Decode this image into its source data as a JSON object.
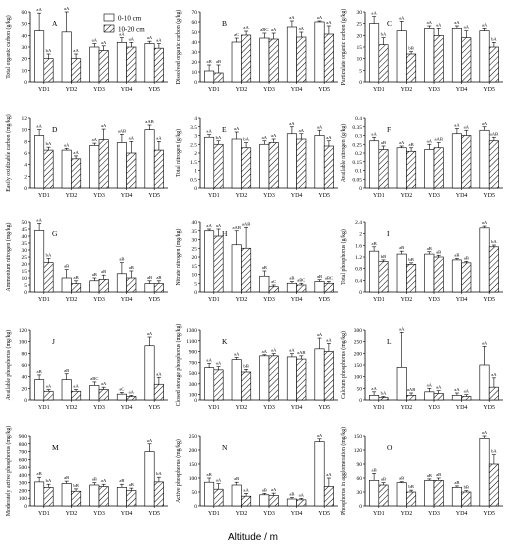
{
  "figure": {
    "xlabel": "Altitude / m",
    "legend": {
      "position": "top-right of panel A",
      "entries": [
        "0-10 cm",
        "10-20 cm"
      ]
    }
  },
  "chart_data": [
    {
      "type": "bar",
      "panel": "A",
      "ylabel": "Total organic carbon (g/kg)",
      "categories": [
        "YD1",
        "YD2",
        "YD3",
        "YD4",
        "YD5"
      ],
      "ylim": [
        0,
        60
      ],
      "yticks": [
        0,
        10,
        20,
        30,
        40,
        50,
        60
      ],
      "series": [
        {
          "name": "0-10 cm",
          "values": [
            44,
            43,
            30,
            34,
            33
          ],
          "errors": [
            15,
            17,
            3,
            4,
            2
          ],
          "labels": [
            "aA",
            "aA",
            "aA",
            "aA",
            "aA"
          ]
        },
        {
          "name": "10-20 cm",
          "values": [
            20,
            20,
            27,
            30,
            29
          ],
          "errors": [
            4,
            4,
            4,
            4,
            4
          ],
          "labels": [
            "bA",
            "aA",
            "aA",
            "aA",
            "aA"
          ]
        }
      ]
    },
    {
      "type": "bar",
      "panel": "B",
      "ylabel": "Dissolved organic carbon (g/kg)",
      "categories": [
        "YD1",
        "YD2",
        "YD3",
        "YD4",
        "YD5"
      ],
      "ylim": [
        0,
        70
      ],
      "yticks": [
        0,
        10,
        20,
        30,
        40,
        50,
        60,
        70
      ],
      "series": [
        {
          "name": "0-10 cm",
          "values": [
            11,
            40,
            44,
            55,
            60
          ],
          "errors": [
            6,
            4,
            5,
            6,
            1
          ],
          "labels": [
            "aB",
            "aC",
            "aBC",
            "aA",
            "aA"
          ]
        },
        {
          "name": "10-20 cm",
          "values": [
            9,
            47,
            43,
            45,
            48
          ],
          "errors": [
            8,
            4,
            6,
            5,
            8
          ],
          "labels": [
            "aB",
            "aA",
            "aA",
            "aA",
            "aA"
          ]
        }
      ]
    },
    {
      "type": "bar",
      "panel": "C",
      "ylabel": "Particulate organic carbon (g/kg)",
      "categories": [
        "YD1",
        "YD2",
        "YD3",
        "YD4",
        "YD5"
      ],
      "ylim": [
        0,
        30
      ],
      "yticks": [
        0,
        5,
        10,
        15,
        20,
        25,
        30
      ],
      "series": [
        {
          "name": "0-10 cm",
          "values": [
            25,
            22,
            23,
            23,
            22
          ],
          "errors": [
            3,
            4,
            1,
            1,
            1
          ],
          "labels": [
            "aA",
            "aA",
            "aA",
            "aA",
            "aA"
          ]
        },
        {
          "name": "10-20 cm",
          "values": [
            16,
            12,
            20,
            19,
            15
          ],
          "errors": [
            3,
            1,
            3,
            3,
            2
          ],
          "labels": [
            "bA",
            "bB",
            "aA",
            "aA",
            "bA"
          ]
        }
      ]
    },
    {
      "type": "bar",
      "panel": "D",
      "ylabel": "Easily oxidizable carbon (mg/kg)",
      "categories": [
        "YD1",
        "YD2",
        "YD3",
        "YD4",
        "YD5"
      ],
      "ylim": [
        0,
        12
      ],
      "yticks": [
        0,
        2,
        4,
        6,
        8,
        10,
        12
      ],
      "series": [
        {
          "name": "0-10 cm",
          "values": [
            9.0,
            6.5,
            7.3,
            7.8,
            10.0
          ],
          "errors": [
            1.0,
            0.3,
            0.4,
            1.4,
            0.8
          ],
          "labels": [
            "aA",
            "aA",
            "aA",
            "aAB",
            "aAB"
          ]
        },
        {
          "name": "10-20 cm",
          "values": [
            6.5,
            5.0,
            8.3,
            6.0,
            6.5
          ],
          "errors": [
            0.5,
            0.5,
            1.8,
            2.0,
            1.5
          ],
          "labels": [
            "bA",
            "aA",
            "aA",
            "aA",
            "aA"
          ]
        }
      ]
    },
    {
      "type": "bar",
      "panel": "E",
      "ylabel": "Total nitrogen (g/kg)",
      "categories": [
        "YD1",
        "YD2",
        "YD3",
        "YD4",
        "YD5"
      ],
      "ylim": [
        0,
        4.0
      ],
      "yticks": [
        0,
        0.5,
        1.0,
        1.5,
        2.0,
        2.5,
        3.0,
        3.5,
        4.0
      ],
      "series": [
        {
          "name": "0-10 cm",
          "values": [
            2.9,
            2.8,
            2.5,
            3.1,
            3.0
          ],
          "errors": [
            0.15,
            0.4,
            0.2,
            0.4,
            0.3
          ],
          "labels": [
            "aA",
            "aA",
            "aA",
            "aA",
            "aA"
          ]
        },
        {
          "name": "10-20 cm",
          "values": [
            2.5,
            2.3,
            2.6,
            2.8,
            2.4
          ],
          "errors": [
            0.2,
            0.3,
            0.2,
            0.3,
            0.3
          ],
          "labels": [
            "bA",
            "bA",
            "aA",
            "aA",
            "aA"
          ]
        }
      ]
    },
    {
      "type": "bar",
      "panel": "F",
      "ylabel": "Available nitrogen (g/kg)",
      "categories": [
        "YD1",
        "YD2",
        "YD3",
        "YD4",
        "YD5"
      ],
      "ylim": [
        0,
        0.4
      ],
      "yticks": [
        0,
        0.05,
        0.1,
        0.15,
        0.2,
        0.25,
        0.3,
        0.35,
        0.4
      ],
      "series": [
        {
          "name": "0-10 cm",
          "values": [
            0.27,
            0.23,
            0.22,
            0.31,
            0.33
          ],
          "errors": [
            0.02,
            0.01,
            0.03,
            0.03,
            0.02
          ],
          "labels": [
            "aA",
            "aA",
            "aA",
            "aA",
            "aA"
          ]
        },
        {
          "name": "10-20 cm",
          "values": [
            0.22,
            0.21,
            0.23,
            0.3,
            0.27
          ],
          "errors": [
            0.02,
            0.02,
            0.03,
            0.03,
            0.02
          ],
          "labels": [
            "aB",
            "aB",
            "aAB",
            "aA",
            "aAB"
          ]
        }
      ]
    },
    {
      "type": "bar",
      "panel": "G",
      "ylabel": "Ammonium nitrogen (mg/kg)",
      "categories": [
        "YD1",
        "YD2",
        "YD3",
        "YD4",
        "YD5"
      ],
      "ylim": [
        0,
        50
      ],
      "yticks": [
        0,
        5,
        10,
        15,
        20,
        25,
        30,
        35,
        40,
        45,
        50
      ],
      "series": [
        {
          "name": "0-10 cm",
          "values": [
            44,
            10,
            8,
            13,
            6
          ],
          "errors": [
            5,
            6,
            2,
            8,
            2
          ],
          "labels": [
            "aA",
            "aB",
            "aB",
            "aB",
            "aB"
          ]
        },
        {
          "name": "10-20 cm",
          "values": [
            21,
            6,
            9,
            10,
            6
          ],
          "errors": [
            3,
            2,
            3,
            5,
            2
          ],
          "labels": [
            "bA",
            "aB",
            "aB",
            "aB",
            "aB"
          ]
        }
      ]
    },
    {
      "type": "bar",
      "panel": "H",
      "ylabel": "Nitrate nitrogen (mg/kg)",
      "categories": [
        "YD1",
        "YD2",
        "YD3",
        "YD4",
        "YD5"
      ],
      "ylim": [
        0,
        40
      ],
      "yticks": [
        0,
        5,
        10,
        15,
        20,
        25,
        30,
        35,
        40
      ],
      "series": [
        {
          "name": "0-10 cm",
          "values": [
            35,
            27,
            9,
            5,
            6
          ],
          "errors": [
            1,
            8,
            3,
            1,
            1
          ],
          "labels": [
            "aA",
            "aAB",
            "aB",
            "aB",
            "aB"
          ]
        },
        {
          "name": "10-20 cm",
          "values": [
            32,
            25,
            3,
            4,
            5
          ],
          "errors": [
            4,
            12,
            1,
            1,
            1
          ],
          "labels": [
            "aA",
            "aAB",
            "aC",
            "aBC",
            "aBC"
          ]
        }
      ]
    },
    {
      "type": "bar",
      "panel": "I",
      "ylabel": "Total phosphorus (g/kg)",
      "categories": [
        "YD1",
        "YD2",
        "YD3",
        "YD4",
        "YD5"
      ],
      "ylim": [
        0,
        2.4
      ],
      "yticks": [
        0,
        0.4,
        0.8,
        1.2,
        1.6,
        2.0,
        2.4
      ],
      "series": [
        {
          "name": "0-10 cm",
          "values": [
            1.4,
            1.3,
            1.3,
            1.1,
            2.2
          ],
          "errors": [
            0.15,
            0.1,
            0.08,
            0.05,
            0.06
          ],
          "labels": [
            "aB",
            "aB",
            "aB",
            "aB",
            "aA"
          ]
        },
        {
          "name": "10-20 cm",
          "values": [
            1.05,
            0.95,
            1.2,
            1.0,
            1.55
          ],
          "errors": [
            0.05,
            0.05,
            0.06,
            0.05,
            0.06
          ],
          "labels": [
            "bB",
            "bB",
            "aB",
            "aB",
            "bA"
          ]
        }
      ]
    },
    {
      "type": "bar",
      "panel": "J",
      "ylabel": "Available phosphorus (mg/kg)",
      "categories": [
        "YD1",
        "YD2",
        "YD3",
        "YD4",
        "YD5"
      ],
      "ylim": [
        0,
        120
      ],
      "yticks": [
        0,
        20,
        40,
        60,
        80,
        100,
        120
      ],
      "series": [
        {
          "name": "0-10 cm",
          "values": [
            35,
            35,
            25,
            10,
            93
          ],
          "errors": [
            8,
            10,
            6,
            3,
            15
          ],
          "labels": [
            "aB",
            "aB",
            "aBC",
            "aC",
            "aA"
          ]
        },
        {
          "name": "10-20 cm",
          "values": [
            15,
            15,
            18,
            6,
            27
          ],
          "errors": [
            3,
            3,
            4,
            2,
            12
          ],
          "labels": [
            "aA",
            "aA",
            "aA",
            "aA",
            "aA"
          ]
        }
      ]
    },
    {
      "type": "bar",
      "panel": "K",
      "ylabel": "Closed storage phosphorus (mg/kg)",
      "categories": [
        "YD1",
        "YD2",
        "YD3",
        "YD4",
        "YD5"
      ],
      "ylim": [
        0,
        1300
      ],
      "yticks": [
        0,
        100,
        300,
        500,
        700,
        900,
        1100,
        1300
      ],
      "series": [
        {
          "name": "0-10 cm",
          "values": [
            600,
            750,
            820,
            800,
            950
          ],
          "errors": [
            80,
            40,
            20,
            60,
            200
          ],
          "labels": [
            "aA",
            "aA",
            "aA",
            "aA",
            "aA"
          ]
        },
        {
          "name": "10-20 cm",
          "values": [
            560,
            520,
            820,
            760,
            900
          ],
          "errors": [
            60,
            50,
            40,
            60,
            150
          ],
          "labels": [
            "aA",
            "bB",
            "aA",
            "aAB",
            "aA"
          ]
        }
      ]
    },
    {
      "type": "bar",
      "panel": "L",
      "ylabel": "Calcium phosphorus (mg/kg)",
      "categories": [
        "YD1",
        "YD2",
        "YD3",
        "YD4",
        "YD5"
      ],
      "ylim": [
        0,
        300
      ],
      "yticks": [
        0,
        50,
        100,
        150,
        200,
        250,
        300
      ],
      "series": [
        {
          "name": "0-10 cm",
          "values": [
            20,
            140,
            35,
            20,
            150
          ],
          "errors": [
            15,
            150,
            15,
            10,
            80
          ],
          "labels": [
            "aA",
            "aA",
            "aA",
            "aA",
            "aA"
          ]
        },
        {
          "name": "10-20 cm",
          "values": [
            10,
            20,
            28,
            15,
            55
          ],
          "errors": [
            5,
            10,
            12,
            8,
            40
          ],
          "labels": [
            "bA",
            "aAB",
            "aA",
            "aA",
            "aA"
          ]
        }
      ]
    },
    {
      "type": "bar",
      "panel": "M",
      "ylabel": "Moderately active phosphorus (mg/kg)",
      "categories": [
        "YD1",
        "YD2",
        "YD3",
        "YD4",
        "YD5"
      ],
      "ylim": [
        0,
        900
      ],
      "yticks": [
        0,
        100,
        200,
        300,
        400,
        500,
        600,
        700,
        800,
        900
      ],
      "series": [
        {
          "name": "0-10 cm",
          "values": [
            310,
            290,
            270,
            240,
            700
          ],
          "errors": [
            60,
            30,
            30,
            40,
            100
          ],
          "labels": [
            "aB",
            "aB",
            "aB",
            "aB",
            "aA"
          ]
        },
        {
          "name": "10-20 cm",
          "values": [
            240,
            190,
            250,
            200,
            310
          ],
          "errors": [
            40,
            30,
            30,
            30,
            60
          ],
          "labels": [
            "bA",
            "bB",
            "aA",
            "aB",
            "bA"
          ]
        }
      ]
    },
    {
      "type": "bar",
      "panel": "N",
      "ylabel": "Active phosphorus (mg/kg)",
      "categories": [
        "YD1",
        "YD2",
        "YD3",
        "YD4",
        "YD5"
      ],
      "ylim": [
        0,
        250
      ],
      "yticks": [
        0,
        50,
        100,
        150,
        200,
        250
      ],
      "series": [
        {
          "name": "0-10 cm",
          "values": [
            85,
            75,
            40,
            25,
            230
          ],
          "errors": [
            15,
            10,
            5,
            5,
            10
          ],
          "labels": [
            "aB",
            "aB",
            "aB",
            "aB",
            "aA"
          ]
        },
        {
          "name": "10-20 cm",
          "values": [
            60,
            35,
            38,
            22,
            70
          ],
          "errors": [
            20,
            10,
            8,
            5,
            30
          ],
          "labels": [
            "aA",
            "aA",
            "aA",
            "aA",
            "aA"
          ]
        }
      ]
    },
    {
      "type": "bar",
      "panel": "O",
      "ylabel": "Phosphorus in agglomeration (mg/kg)",
      "categories": [
        "YD1",
        "YD2",
        "YD3",
        "YD4",
        "YD5"
      ],
      "ylim": [
        0,
        150
      ],
      "yticks": [
        0,
        30,
        60,
        90,
        120,
        150
      ],
      "series": [
        {
          "name": "0-10 cm",
          "values": [
            55,
            50,
            55,
            40,
            145
          ],
          "errors": [
            15,
            2,
            3,
            3,
            5
          ],
          "labels": [
            "aB",
            "aB",
            "aB",
            "aB",
            "aA"
          ]
        },
        {
          "name": "10-20 cm",
          "values": [
            45,
            30,
            55,
            30,
            90
          ],
          "errors": [
            5,
            4,
            5,
            3,
            20
          ],
          "labels": [
            "aB",
            "bB",
            "aB",
            "bB",
            "bA"
          ]
        }
      ]
    }
  ]
}
